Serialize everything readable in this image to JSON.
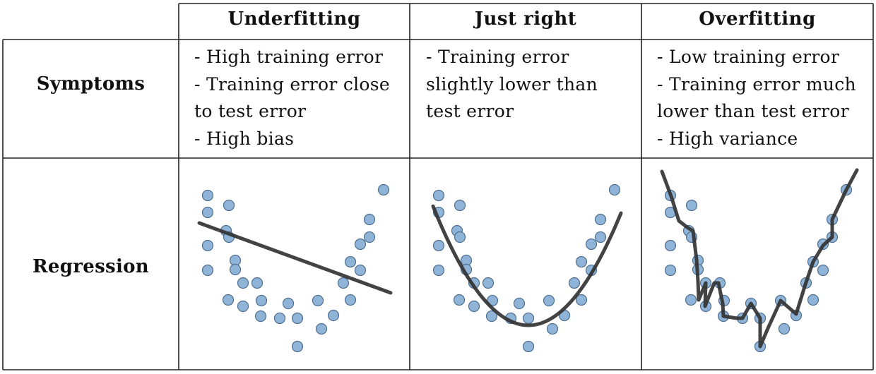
{
  "columns": [
    {
      "title": "Underfitting"
    },
    {
      "title": "Just right"
    },
    {
      "title": "Overfitting"
    }
  ],
  "rows": {
    "symptoms_label": "Symptoms",
    "regression_label": "Regression"
  },
  "symptoms": [
    [
      "- High training error",
      "- Training error close",
      "to test error",
      "- High bias"
    ],
    [
      "- Training error",
      "slightly lower than",
      "test error"
    ],
    [
      "- Low training error",
      "- Training error much",
      "lower than test error",
      "- High variance"
    ]
  ],
  "colors": {
    "point_fill": "#8fb4d8",
    "point_stroke": "#4f6f90",
    "fit_line": "#333333",
    "border": "#222222"
  }
}
